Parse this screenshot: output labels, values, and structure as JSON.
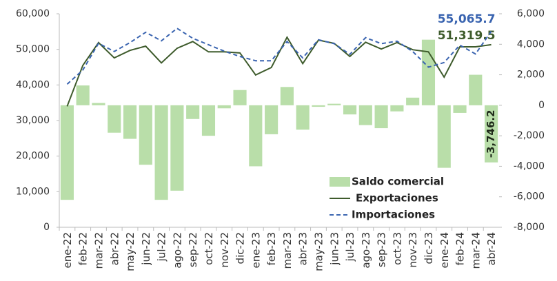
{
  "chart_data": {
    "type": "combo",
    "categories": [
      "ene-22",
      "feb-22",
      "mar-22",
      "abr-22",
      "may-22",
      "jun-22",
      "jul-22",
      "ago-22",
      "sep-22",
      "oct-22",
      "nov-22",
      "dic-22",
      "ene-23",
      "feb-23",
      "mar-23",
      "abr-23",
      "may-23",
      "jun-23",
      "jul-23",
      "ago-23",
      "sep-23",
      "oct-23",
      "nov-23",
      "dic-23",
      "ene-24",
      "feb-24",
      "mar-24",
      "abr-24"
    ],
    "series": [
      {
        "name": "Saldo comercial",
        "type": "bar",
        "axis": "y2",
        "color": "#b9dea9",
        "values": [
          -6200,
          1300,
          150,
          -1800,
          -2200,
          -3900,
          -6200,
          -5600,
          -900,
          -2000,
          -200,
          1000,
          -4000,
          -1900,
          1200,
          -1600,
          -100,
          100,
          -600,
          -1300,
          -1500,
          -400,
          500,
          4300,
          -4100,
          -500,
          2000,
          -3746.2
        ],
        "value_labels": [
          null,
          null,
          null,
          null,
          null,
          null,
          null,
          null,
          null,
          null,
          null,
          null,
          null,
          null,
          null,
          null,
          null,
          null,
          null,
          null,
          null,
          null,
          null,
          null,
          null,
          null,
          null,
          "-3,746.2"
        ]
      },
      {
        "name": "Exportaciones",
        "type": "line",
        "color": "#3e5b2c",
        "dashed": false,
        "values": [
          34000,
          45500,
          51900,
          47600,
          49700,
          50900,
          46200,
          50300,
          52200,
          49300,
          49300,
          49000,
          42800,
          44900,
          53400,
          46000,
          52600,
          51700,
          48000,
          52000,
          50100,
          51900,
          49900,
          49300,
          42200,
          50700,
          50700,
          51319.5
        ],
        "value_labels": [
          null,
          null,
          null,
          null,
          null,
          null,
          null,
          null,
          null,
          null,
          null,
          null,
          null,
          null,
          null,
          null,
          null,
          null,
          null,
          null,
          null,
          null,
          null,
          null,
          null,
          null,
          null,
          "51,319.5"
        ]
      },
      {
        "name": "Importaciones",
        "type": "line",
        "color": "#3a64b0",
        "dashed": true,
        "values": [
          40200,
          44200,
          51700,
          49400,
          51900,
          54800,
          52400,
          55900,
          53100,
          51300,
          49500,
          48000,
          46800,
          46800,
          52200,
          47600,
          52700,
          51600,
          48600,
          53300,
          51600,
          52300,
          49400,
          45000,
          46300,
          51200,
          48700,
          55065.7
        ],
        "value_labels": [
          null,
          null,
          null,
          null,
          null,
          null,
          null,
          null,
          null,
          null,
          null,
          null,
          null,
          null,
          null,
          null,
          null,
          null,
          null,
          null,
          null,
          null,
          null,
          null,
          null,
          null,
          null,
          "55,065.7"
        ]
      }
    ],
    "ylim": [
      0,
      60000
    ],
    "yticks": [
      0,
      {
        "value": 10000,
        "label": "10,000"
      },
      {
        "value": 20000,
        "label": "20,000"
      },
      {
        "value": 30000,
        "label": "30,000"
      },
      {
        "value": 40000,
        "label": "40,000"
      },
      {
        "value": 50000,
        "label": "50,000"
      },
      {
        "value": 60000,
        "label": "60,000"
      }
    ],
    "y2lim": [
      -8000,
      6000
    ],
    "y2ticks": [
      {
        "value": -8000,
        "label": "-8,000"
      },
      {
        "value": -6000,
        "label": "-6,000"
      },
      {
        "value": -4000,
        "label": "-4,000"
      },
      {
        "value": -2000,
        "label": "-2,000"
      },
      0,
      {
        "value": 2000,
        "label": "2,000"
      },
      {
        "value": 4000,
        "label": "4,000"
      },
      {
        "value": 6000,
        "label": "6,000"
      }
    ],
    "legend": "lower-right",
    "grid": false
  }
}
